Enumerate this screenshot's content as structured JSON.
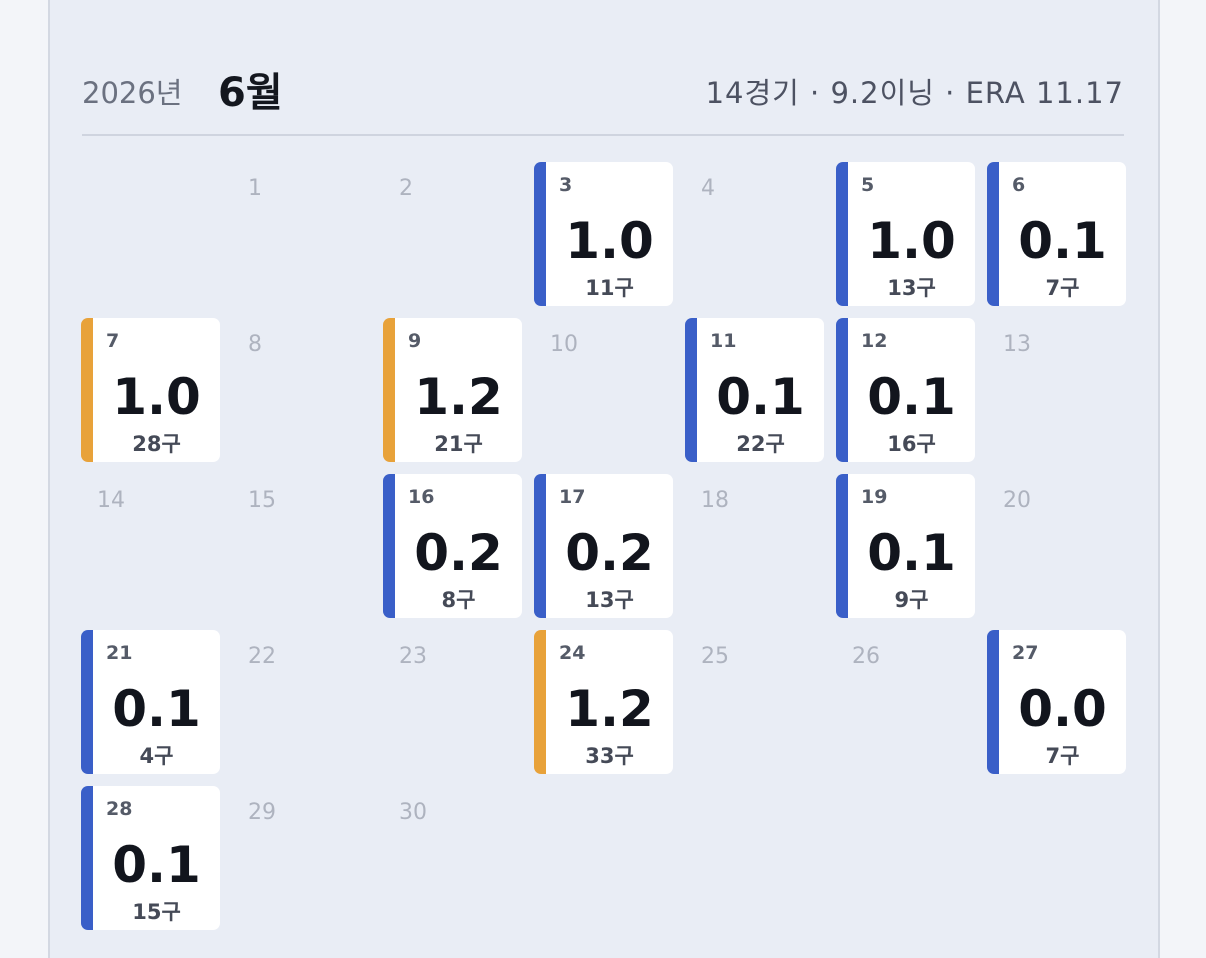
{
  "header": {
    "year": "2026년",
    "month": "6월",
    "summary": "14경기 · 9.2이닝 · ERA 11.17"
  },
  "calendar": {
    "days": [
      null,
      {
        "day": "1"
      },
      {
        "day": "2"
      },
      {
        "day": "3",
        "innings": "1.0",
        "pitches": "11구",
        "color": "#3a5fc8"
      },
      {
        "day": "4"
      },
      {
        "day": "5",
        "innings": "1.0",
        "pitches": "13구",
        "color": "#3a5fc8"
      },
      {
        "day": "6",
        "innings": "0.1",
        "pitches": "7구",
        "color": "#3a5fc8"
      },
      {
        "day": "7",
        "innings": "1.0",
        "pitches": "28구",
        "color": "#e8a23a"
      },
      {
        "day": "8"
      },
      {
        "day": "9",
        "innings": "1.2",
        "pitches": "21구",
        "color": "#e8a23a"
      },
      {
        "day": "10"
      },
      {
        "day": "11",
        "innings": "0.1",
        "pitches": "22구",
        "color": "#3a5fc8"
      },
      {
        "day": "12",
        "innings": "0.1",
        "pitches": "16구",
        "color": "#3a5fc8"
      },
      {
        "day": "13"
      },
      {
        "day": "14"
      },
      {
        "day": "15"
      },
      {
        "day": "16",
        "innings": "0.2",
        "pitches": "8구",
        "color": "#3a5fc8"
      },
      {
        "day": "17",
        "innings": "0.2",
        "pitches": "13구",
        "color": "#3a5fc8"
      },
      {
        "day": "18"
      },
      {
        "day": "19",
        "innings": "0.1",
        "pitches": "9구",
        "color": "#3a5fc8"
      },
      {
        "day": "20"
      },
      {
        "day": "21",
        "innings": "0.1",
        "pitches": "4구",
        "color": "#3a5fc8"
      },
      {
        "day": "22"
      },
      {
        "day": "23"
      },
      {
        "day": "24",
        "innings": "1.2",
        "pitches": "33구",
        "color": "#e8a23a"
      },
      {
        "day": "25"
      },
      {
        "day": "26"
      },
      {
        "day": "27",
        "innings": "0.0",
        "pitches": "7구",
        "color": "#3a5fc8"
      },
      {
        "day": "28",
        "innings": "0.1",
        "pitches": "15구",
        "color": "#3a5fc8"
      },
      {
        "day": "29"
      },
      {
        "day": "30"
      }
    ]
  }
}
